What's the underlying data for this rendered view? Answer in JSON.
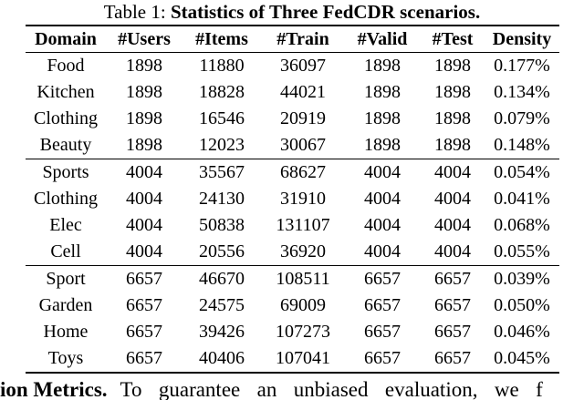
{
  "caption": {
    "label": "Table 1: ",
    "text": "Statistics of Three FedCDR scenarios."
  },
  "table": {
    "columns": [
      "Domain",
      "#Users",
      "#Items",
      "#Train",
      "#Valid",
      "#Test",
      "Density"
    ],
    "groups": [
      {
        "rows": [
          [
            "Food",
            "1898",
            "11880",
            "36097",
            "1898",
            "1898",
            "0.177%"
          ],
          [
            "Kitchen",
            "1898",
            "18828",
            "44021",
            "1898",
            "1898",
            "0.134%"
          ],
          [
            "Clothing",
            "1898",
            "16546",
            "20919",
            "1898",
            "1898",
            "0.079%"
          ],
          [
            "Beauty",
            "1898",
            "12023",
            "30067",
            "1898",
            "1898",
            "0.148%"
          ]
        ]
      },
      {
        "rows": [
          [
            "Sports",
            "4004",
            "35567",
            "68627",
            "4004",
            "4004",
            "0.054%"
          ],
          [
            "Clothing",
            "4004",
            "24130",
            "31910",
            "4004",
            "4004",
            "0.041%"
          ],
          [
            "Elec",
            "4004",
            "50838",
            "131107",
            "4004",
            "4004",
            "0.068%"
          ],
          [
            "Cell",
            "4004",
            "20556",
            "36920",
            "4004",
            "4004",
            "0.055%"
          ]
        ]
      },
      {
        "rows": [
          [
            "Sport",
            "6657",
            "46670",
            "108511",
            "6657",
            "6657",
            "0.039%"
          ],
          [
            "Garden",
            "6657",
            "24575",
            "69009",
            "6657",
            "6657",
            "0.050%"
          ],
          [
            "Home",
            "6657",
            "39426",
            "107273",
            "6657",
            "6657",
            "0.046%"
          ],
          [
            "Toys",
            "6657",
            "40406",
            "107041",
            "6657",
            "6657",
            "0.045%"
          ]
        ]
      }
    ]
  },
  "footer": {
    "bold": "ion Metrics.",
    "text": "To guarantee an unbiased evaluation, we f"
  }
}
